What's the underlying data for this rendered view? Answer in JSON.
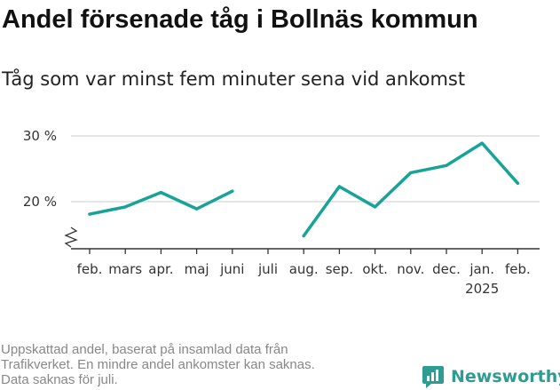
{
  "title": "Andel försenade tåg i Bollnäs kommun",
  "subtitle": "Tåg som var minst fem minuter sena vid ankomst",
  "footnote": [
    "Uppskattad andel, baserat på insamlad data från",
    "Trafikverket. En mindre andel ankomster kan saknas.",
    "Data saknas för juli."
  ],
  "brand": {
    "name": "Newsworthy",
    "icon": "newsworthy-logo-icon"
  },
  "colors": {
    "line": "#17a398",
    "grid": "#dddddd",
    "axis": "#333333",
    "brand": "#2e9c90",
    "footnote": "#888888"
  },
  "chart_data": {
    "type": "line",
    "categories": [
      "feb.",
      "mars",
      "apr.",
      "maj",
      "juni",
      "juli",
      "aug.",
      "sep.",
      "okt.",
      "nov.",
      "dec.",
      "jan.",
      "feb."
    ],
    "year_label": {
      "category_index": 11,
      "text": "2025"
    },
    "values": [
      18.1,
      19.2,
      21.4,
      18.9,
      21.6,
      null,
      14.8,
      22.3,
      19.2,
      24.4,
      25.5,
      28.9,
      22.8
    ],
    "y_ticks": [
      {
        "value": 20,
        "label": "20 %"
      },
      {
        "value": 30,
        "label": "30 %"
      }
    ],
    "ylim": [
      14,
      31
    ],
    "y_axis_break": true,
    "grid": true,
    "xlabel": "",
    "ylabel": ""
  }
}
